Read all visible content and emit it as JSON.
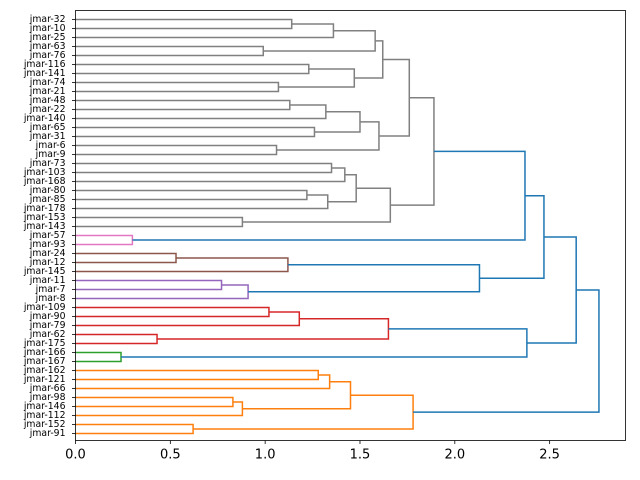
{
  "chart_data": {
    "type": "dendrogram",
    "orientation": "left",
    "title": "",
    "xlabel": "",
    "ylabel": "",
    "xlim": [
      0,
      2.9
    ],
    "xticks": [
      0.0,
      0.5,
      1.0,
      1.5,
      2.0,
      2.5
    ],
    "xtick_labels": [
      "0.0",
      "0.5",
      "1.0",
      "1.5",
      "2.0",
      "2.5"
    ],
    "leaves": [
      "jmar-32",
      "jmar-10",
      "jmar-25",
      "jmar-63",
      "jmar-76",
      "jmar-116",
      "jmar-141",
      "jmar-74",
      "jmar-21",
      "jmar-48",
      "jmar-22",
      "jmar-140",
      "jmar-65",
      "jmar-31",
      "jmar-6",
      "jmar-9",
      "jmar-73",
      "jmar-103",
      "jmar-168",
      "jmar-80",
      "jmar-85",
      "jmar-178",
      "jmar-153",
      "jmar-143",
      "jmar-57",
      "jmar-93",
      "jmar-24",
      "jmar-12",
      "jmar-145",
      "jmar-11",
      "jmar-7",
      "jmar-8",
      "jmar-109",
      "jmar-90",
      "jmar-79",
      "jmar-62",
      "jmar-175",
      "jmar-166",
      "jmar-167",
      "jmar-162",
      "jmar-121",
      "jmar-66",
      "jmar-98",
      "jmar-146",
      "jmar-112",
      "jmar-152",
      "jmar-91"
    ],
    "colors": {
      "gray": "#808080",
      "pink": "#e377c2",
      "brown": "#8c564b",
      "purple": "#9467bd",
      "red": "#d62728",
      "green": "#2ca02c",
      "orange": "#ff7f0e",
      "blue": "#1f77b4"
    },
    "merges": [
      {
        "id": "g1",
        "children": [
          "jmar-32",
          "jmar-10"
        ],
        "height": 1.14,
        "color": "gray"
      },
      {
        "id": "g2",
        "children": [
          "g1",
          "jmar-25"
        ],
        "height": 1.36,
        "color": "gray"
      },
      {
        "id": "g3",
        "children": [
          "jmar-63",
          "jmar-76"
        ],
        "height": 0.99,
        "color": "gray"
      },
      {
        "id": "g4",
        "children": [
          "g2",
          "g3"
        ],
        "height": 1.58,
        "color": "gray"
      },
      {
        "id": "g5",
        "children": [
          "jmar-116",
          "jmar-141"
        ],
        "height": 1.23,
        "color": "gray"
      },
      {
        "id": "g6",
        "children": [
          "jmar-74",
          "jmar-21"
        ],
        "height": 1.07,
        "color": "gray"
      },
      {
        "id": "g7",
        "children": [
          "g5",
          "g6"
        ],
        "height": 1.47,
        "color": "gray"
      },
      {
        "id": "g8",
        "children": [
          "g4",
          "g7"
        ],
        "height": 1.62,
        "color": "gray"
      },
      {
        "id": "g9",
        "children": [
          "jmar-48",
          "jmar-22"
        ],
        "height": 1.13,
        "color": "gray"
      },
      {
        "id": "g10",
        "children": [
          "g9",
          "jmar-140"
        ],
        "height": 1.32,
        "color": "gray"
      },
      {
        "id": "g11",
        "children": [
          "jmar-65",
          "jmar-31"
        ],
        "height": 1.26,
        "color": "gray"
      },
      {
        "id": "g12",
        "children": [
          "g10",
          "g11"
        ],
        "height": 1.5,
        "color": "gray"
      },
      {
        "id": "g13",
        "children": [
          "jmar-6",
          "jmar-9"
        ],
        "height": 1.06,
        "color": "gray"
      },
      {
        "id": "g14",
        "children": [
          "g12",
          "g13"
        ],
        "height": 1.6,
        "color": "gray"
      },
      {
        "id": "g15",
        "children": [
          "g8",
          "g14"
        ],
        "height": 1.76,
        "color": "gray"
      },
      {
        "id": "g16",
        "children": [
          "jmar-73",
          "jmar-103"
        ],
        "height": 1.35,
        "color": "gray"
      },
      {
        "id": "g17",
        "children": [
          "g16",
          "jmar-168"
        ],
        "height": 1.42,
        "color": "gray"
      },
      {
        "id": "g18",
        "children": [
          "jmar-80",
          "jmar-85"
        ],
        "height": 1.22,
        "color": "gray"
      },
      {
        "id": "g19",
        "children": [
          "g18",
          "jmar-178"
        ],
        "height": 1.33,
        "color": "gray"
      },
      {
        "id": "g20",
        "children": [
          "g17",
          "g19"
        ],
        "height": 1.48,
        "color": "gray"
      },
      {
        "id": "g21",
        "children": [
          "jmar-153",
          "jmar-143"
        ],
        "height": 0.88,
        "color": "gray"
      },
      {
        "id": "g22",
        "children": [
          "g20",
          "g21"
        ],
        "height": 1.66,
        "color": "gray"
      },
      {
        "id": "g23",
        "children": [
          "g15",
          "g22"
        ],
        "height": 1.89,
        "color": "gray"
      },
      {
        "id": "p1",
        "children": [
          "jmar-57",
          "jmar-93"
        ],
        "height": 0.3,
        "color": "pink"
      },
      {
        "id": "b1",
        "children": [
          "g23",
          "p1"
        ],
        "height": 2.37,
        "color": "blue"
      },
      {
        "id": "br1",
        "children": [
          "jmar-24",
          "jmar-12"
        ],
        "height": 0.53,
        "color": "brown"
      },
      {
        "id": "br2",
        "children": [
          "br1",
          "jmar-145"
        ],
        "height": 1.12,
        "color": "brown"
      },
      {
        "id": "pu1",
        "children": [
          "jmar-11",
          "jmar-7"
        ],
        "height": 0.77,
        "color": "purple"
      },
      {
        "id": "pu2",
        "children": [
          "pu1",
          "jmar-8"
        ],
        "height": 0.91,
        "color": "purple"
      },
      {
        "id": "b2",
        "children": [
          "br2",
          "pu2"
        ],
        "height": 2.13,
        "color": "blue"
      },
      {
        "id": "b3",
        "children": [
          "b1",
          "b2"
        ],
        "height": 2.47,
        "color": "blue"
      },
      {
        "id": "r1",
        "children": [
          "jmar-109",
          "jmar-90"
        ],
        "height": 1.02,
        "color": "red"
      },
      {
        "id": "r2",
        "children": [
          "r1",
          "jmar-79"
        ],
        "height": 1.18,
        "color": "red"
      },
      {
        "id": "r3",
        "children": [
          "jmar-62",
          "jmar-175"
        ],
        "height": 0.43,
        "color": "red"
      },
      {
        "id": "r4",
        "children": [
          "r2",
          "r3"
        ],
        "height": 1.65,
        "color": "red"
      },
      {
        "id": "gr1",
        "children": [
          "jmar-166",
          "jmar-167"
        ],
        "height": 0.24,
        "color": "green"
      },
      {
        "id": "b4",
        "children": [
          "r4",
          "gr1"
        ],
        "height": 2.38,
        "color": "blue"
      },
      {
        "id": "b5",
        "children": [
          "b3",
          "b4"
        ],
        "height": 2.64,
        "color": "blue"
      },
      {
        "id": "o1",
        "children": [
          "jmar-162",
          "jmar-121"
        ],
        "height": 1.28,
        "color": "orange"
      },
      {
        "id": "o2",
        "children": [
          "o1",
          "jmar-66"
        ],
        "height": 1.34,
        "color": "orange"
      },
      {
        "id": "o3",
        "children": [
          "jmar-98",
          "jmar-146"
        ],
        "height": 0.83,
        "color": "orange"
      },
      {
        "id": "o4",
        "children": [
          "o3",
          "jmar-112"
        ],
        "height": 0.88,
        "color": "orange"
      },
      {
        "id": "o5",
        "children": [
          "o2",
          "o4"
        ],
        "height": 1.45,
        "color": "orange"
      },
      {
        "id": "o6",
        "children": [
          "jmar-152",
          "jmar-91"
        ],
        "height": 0.62,
        "color": "orange"
      },
      {
        "id": "o7",
        "children": [
          "o5",
          "o6"
        ],
        "height": 1.78,
        "color": "orange"
      },
      {
        "id": "b6",
        "children": [
          "b5",
          "o7"
        ],
        "height": 2.76,
        "color": "blue"
      }
    ]
  }
}
